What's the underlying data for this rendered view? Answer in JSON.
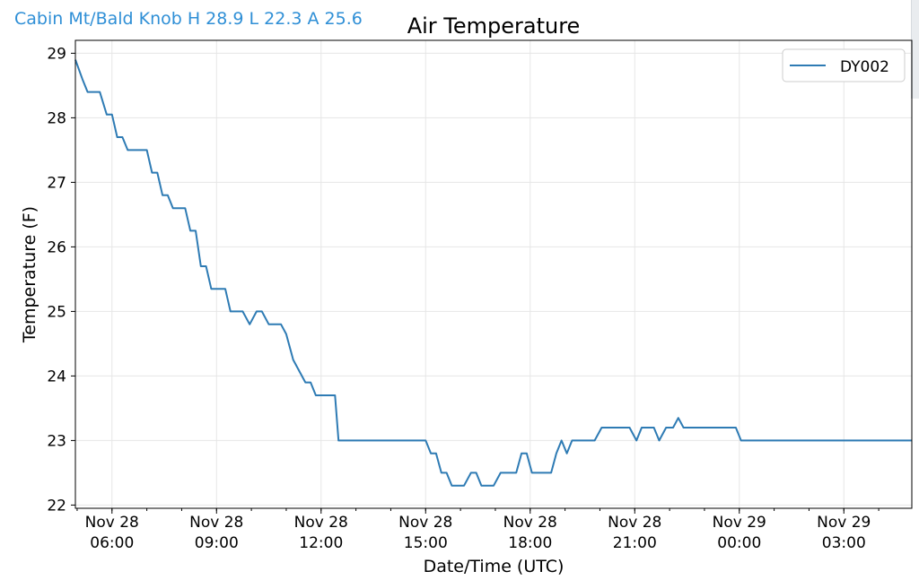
{
  "header": {
    "station_label": "Cabin Mt/Bald Knob H 28.9 L 22.3 A 25.6"
  },
  "chart_data": {
    "type": "line",
    "title": "Air Temperature",
    "xlabel": "Date/Time (UTC)",
    "ylabel": "Temperature (F)",
    "ylim": [
      21.95,
      29.2
    ],
    "xlim": [
      4.95,
      28.95
    ],
    "yticks": [
      22,
      23,
      24,
      25,
      26,
      27,
      28,
      29
    ],
    "xticks": [
      {
        "x": 6,
        "line1": "Nov 28",
        "line2": "06:00"
      },
      {
        "x": 9,
        "line1": "Nov 28",
        "line2": "09:00"
      },
      {
        "x": 12,
        "line1": "Nov 28",
        "line2": "12:00"
      },
      {
        "x": 15,
        "line1": "Nov 28",
        "line2": "15:00"
      },
      {
        "x": 18,
        "line1": "Nov 28",
        "line2": "18:00"
      },
      {
        "x": 21,
        "line1": "Nov 28",
        "line2": "21:00"
      },
      {
        "x": 24,
        "line1": "Nov 29",
        "line2": "00:00"
      },
      {
        "x": 27,
        "line1": "Nov 29",
        "line2": "03:00"
      }
    ],
    "grid": true,
    "legend_position": "top-right",
    "series": [
      {
        "name": "DY002",
        "color": "#2e7bb4",
        "points": [
          [
            4.95,
            28.9
          ],
          [
            5.15,
            28.6
          ],
          [
            5.3,
            28.4
          ],
          [
            5.65,
            28.4
          ],
          [
            5.85,
            28.05
          ],
          [
            6.0,
            28.05
          ],
          [
            6.15,
            27.7
          ],
          [
            6.3,
            27.7
          ],
          [
            6.45,
            27.5
          ],
          [
            7.0,
            27.5
          ],
          [
            7.15,
            27.15
          ],
          [
            7.3,
            27.15
          ],
          [
            7.45,
            26.8
          ],
          [
            7.6,
            26.8
          ],
          [
            7.75,
            26.6
          ],
          [
            8.1,
            26.6
          ],
          [
            8.25,
            26.25
          ],
          [
            8.4,
            26.25
          ],
          [
            8.55,
            25.7
          ],
          [
            8.7,
            25.7
          ],
          [
            8.85,
            25.35
          ],
          [
            9.25,
            25.35
          ],
          [
            9.4,
            25.0
          ],
          [
            9.75,
            25.0
          ],
          [
            9.95,
            24.8
          ],
          [
            10.15,
            25.0
          ],
          [
            10.3,
            25.0
          ],
          [
            10.5,
            24.8
          ],
          [
            10.85,
            24.8
          ],
          [
            11.0,
            24.65
          ],
          [
            11.2,
            24.25
          ],
          [
            11.55,
            23.9
          ],
          [
            11.7,
            23.9
          ],
          [
            11.85,
            23.7
          ],
          [
            12.4,
            23.7
          ],
          [
            12.5,
            23.0
          ],
          [
            15.0,
            23.0
          ],
          [
            15.15,
            22.8
          ],
          [
            15.3,
            22.8
          ],
          [
            15.45,
            22.5
          ],
          [
            15.6,
            22.5
          ],
          [
            15.75,
            22.3
          ],
          [
            16.1,
            22.3
          ],
          [
            16.3,
            22.5
          ],
          [
            16.45,
            22.5
          ],
          [
            16.6,
            22.3
          ],
          [
            16.95,
            22.3
          ],
          [
            17.15,
            22.5
          ],
          [
            17.6,
            22.5
          ],
          [
            17.75,
            22.8
          ],
          [
            17.9,
            22.8
          ],
          [
            18.05,
            22.5
          ],
          [
            18.6,
            22.5
          ],
          [
            18.75,
            22.8
          ],
          [
            18.9,
            23.0
          ],
          [
            19.05,
            22.8
          ],
          [
            19.2,
            23.0
          ],
          [
            19.85,
            23.0
          ],
          [
            20.05,
            23.2
          ],
          [
            20.85,
            23.2
          ],
          [
            21.05,
            23.0
          ],
          [
            21.2,
            23.2
          ],
          [
            21.55,
            23.2
          ],
          [
            21.7,
            23.0
          ],
          [
            21.9,
            23.2
          ],
          [
            22.1,
            23.2
          ],
          [
            22.25,
            23.35
          ],
          [
            22.4,
            23.2
          ],
          [
            23.9,
            23.2
          ],
          [
            24.05,
            23.0
          ],
          [
            28.95,
            23.0
          ]
        ]
      }
    ]
  }
}
